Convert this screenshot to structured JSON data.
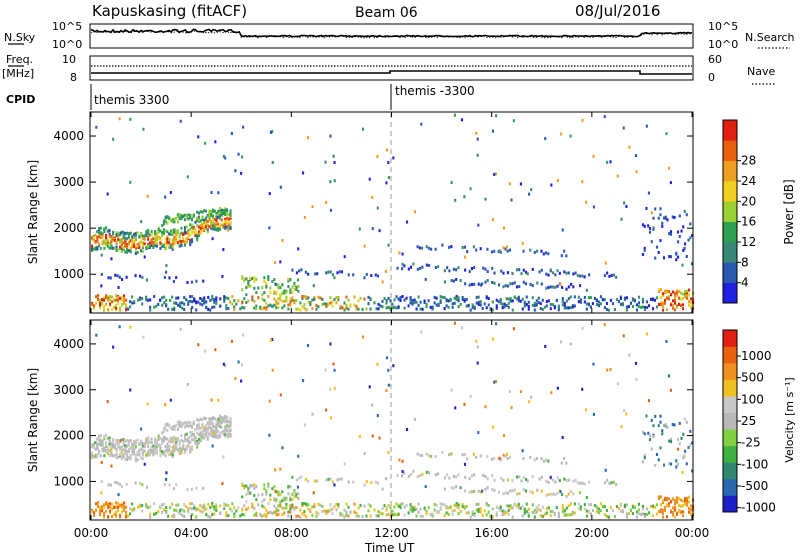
{
  "header": {
    "station": "Kapuskasing (fitACF)",
    "beam": "Beam 06",
    "date": "08/Jul/2016"
  },
  "noise_panel": {
    "left_label": "N.Sky",
    "right_label": "N.Search",
    "left_ticks": [
      "10^5",
      "10^0"
    ],
    "right_ticks": [
      "10^5",
      "10^0"
    ]
  },
  "freq_panel": {
    "left_label_line1": "Freq.",
    "left_label_line2": "[MHz]",
    "right_label": "Nave",
    "left_ticks": [
      "10",
      "8"
    ],
    "right_ticks": [
      "60",
      "0"
    ]
  },
  "cpid": {
    "label": "CPID",
    "segments": [
      "themis 3300",
      "themis -3300"
    ]
  },
  "x_axis": {
    "label": "Time UT",
    "ticks": [
      "00:00",
      "04:00",
      "08:00",
      "12:00",
      "16:00",
      "20:00",
      "00:00"
    ]
  },
  "power_panel": {
    "ylabel": "Slant Range [km]",
    "yticks": [
      "1000",
      "2000",
      "3000",
      "4000"
    ],
    "colorbar_label": "Power [dB]",
    "colorbar_ticks": [
      "4",
      "8",
      "12",
      "16",
      "20",
      "24",
      "28"
    ],
    "colors": [
      "#2020e0",
      "#2858b0",
      "#3a8878",
      "#2fa050",
      "#9ad030",
      "#f0d020",
      "#f0a020",
      "#e86010",
      "#e02010"
    ]
  },
  "velocity_panel": {
    "ylabel": "Slant Range [km]",
    "yticks": [
      "1000",
      "2000",
      "3000",
      "4000"
    ],
    "colorbar_label": "Velocity [m s⁻¹]",
    "colorbar_ticks": [
      "1000",
      "500",
      "100",
      "25",
      "-25",
      "-100",
      "-500",
      "-1000"
    ],
    "colors": [
      "#2020c8",
      "#2868b0",
      "#308870",
      "#40b040",
      "#80d040",
      "#b8b8b8",
      "#c8c8c8",
      "#f0c020",
      "#f09020",
      "#e86010",
      "#e02010"
    ]
  },
  "chart_data": {
    "type": "heatmap",
    "x_range_hours": [
      0,
      24
    ],
    "y_range_km": [
      180,
      4500
    ],
    "cpid_change_hour": 12,
    "regions": [
      {
        "name": "",
        "t0": 0.0,
        "t1": 1.3,
        "r0": 400,
        "r1": 550,
        "level": "high",
        "vel": "negative"
      },
      {
        "name": "",
        "t0": 0.0,
        "t1": 5.5,
        "r0": 1500,
        "r1": 2300,
        "level": "mixed",
        "vel": "low"
      },
      {
        "name": "",
        "t0": 6.0,
        "t1": 12.0,
        "r0": 200,
        "r1": 700,
        "level": "mixed",
        "vel": "mixed"
      },
      {
        "name": "",
        "t0": 12.0,
        "t1": 22.0,
        "r0": 200,
        "r1": 600,
        "level": "low",
        "vel": "mixed"
      },
      {
        "name": "",
        "t0": 22.5,
        "t1": 24.0,
        "r0": 300,
        "r1": 700,
        "level": "high",
        "vel": "negative"
      }
    ]
  }
}
